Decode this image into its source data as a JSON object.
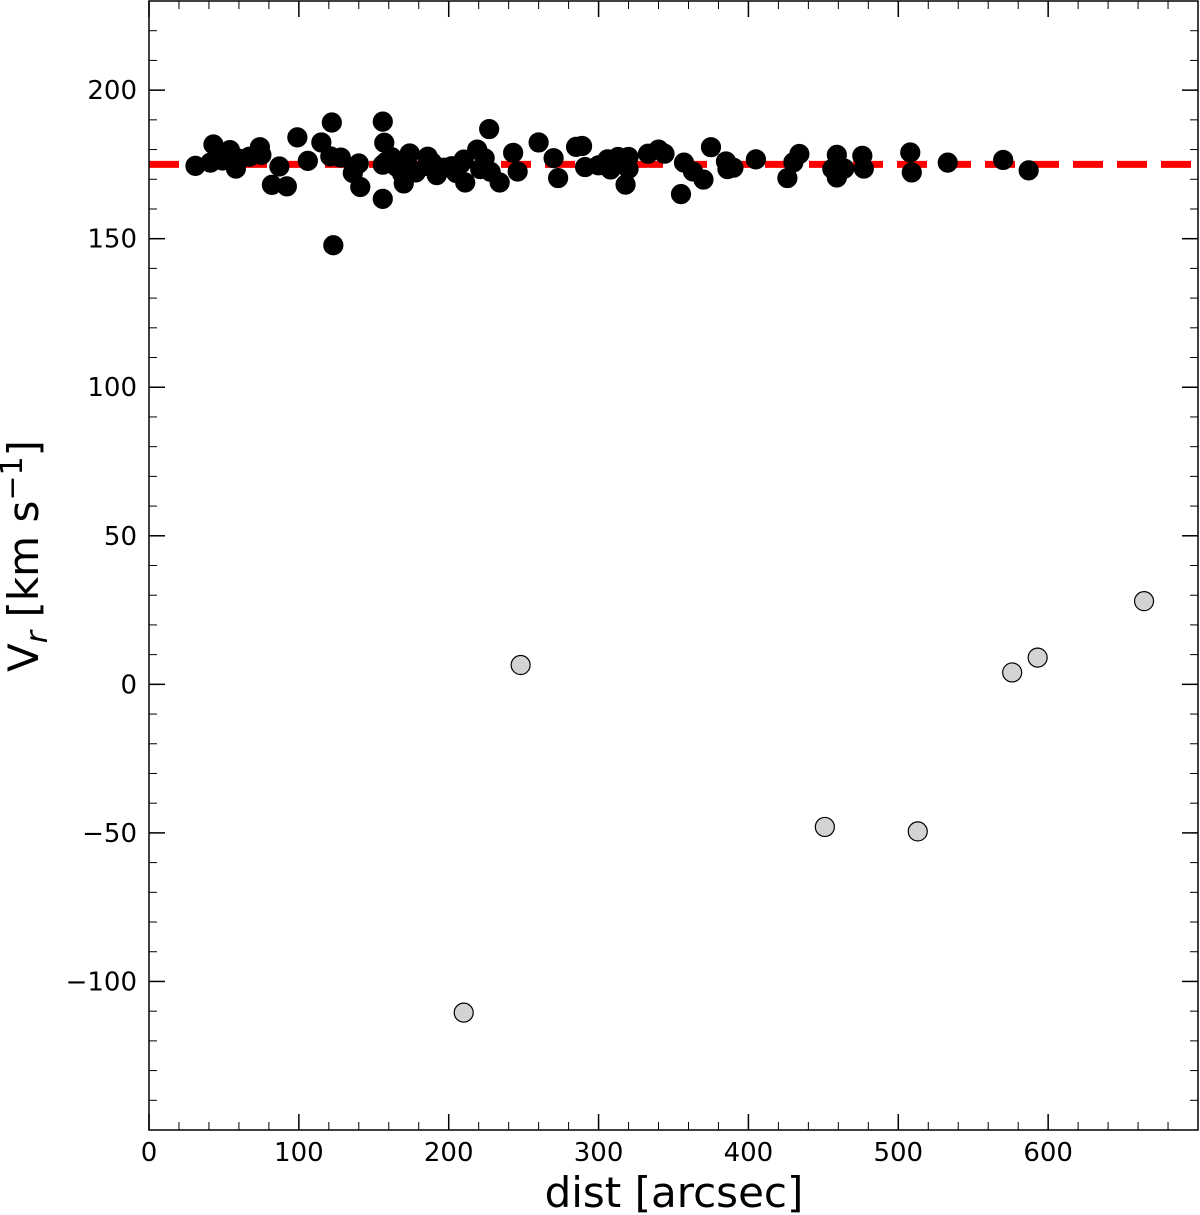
{
  "chart_data": {
    "type": "scatter",
    "title": "",
    "xlabel": "dist [arcsec]",
    "ylabel": {
      "base": "V",
      "sub": "r",
      "units_prefix": " [km s",
      "sup": "−1",
      "units_suffix": "]"
    },
    "xlim": [
      0,
      700
    ],
    "ylim": [
      -150,
      230
    ],
    "x_ticks": [
      0,
      100,
      200,
      300,
      400,
      500,
      600
    ],
    "x_tick_labels": [
      "0",
      "100",
      "200",
      "300",
      "400",
      "500",
      "600"
    ],
    "y_ticks": [
      -100,
      -50,
      0,
      50,
      100,
      150,
      200
    ],
    "y_tick_labels": [
      "−100",
      "−50",
      "0",
      "50",
      "100",
      "150",
      "200"
    ],
    "x_minor_step": 20,
    "y_minor_step": 10,
    "grid": false,
    "reference_line": {
      "y": 175,
      "color": "#ff0000",
      "style": "dashed"
    },
    "series": [
      {
        "marker_color": "#000000",
        "points": [
          [
            31,
            174.5
          ],
          [
            41,
            175.6
          ],
          [
            43,
            181.7
          ],
          [
            49,
            176.3
          ],
          [
            54,
            179.8
          ],
          [
            58,
            173.6
          ],
          [
            60,
            176.9
          ],
          [
            67,
            177.6
          ],
          [
            74,
            180.8
          ],
          [
            75,
            178.2
          ],
          [
            82,
            168.1
          ],
          [
            87,
            174.3
          ],
          [
            92,
            167.6
          ],
          [
            99,
            184.1
          ],
          [
            106,
            176.2
          ],
          [
            115,
            182.4
          ],
          [
            121,
            177.7
          ],
          [
            122,
            189.1
          ],
          [
            123,
            147.8
          ],
          [
            128,
            177.3
          ],
          [
            136,
            172.1
          ],
          [
            140,
            175.3
          ],
          [
            141,
            167.4
          ],
          [
            156,
            189.4
          ],
          [
            156,
            174.9
          ],
          [
            156,
            163.4
          ],
          [
            157,
            182.3
          ],
          [
            158,
            175.8
          ],
          [
            162,
            177.4
          ],
          [
            165,
            174.3
          ],
          [
            167,
            173.5
          ],
          [
            169,
            171.8
          ],
          [
            170,
            168.6
          ],
          [
            172,
            176.4
          ],
          [
            174,
            178.7
          ],
          [
            178,
            172.3
          ],
          [
            185,
            174.5
          ],
          [
            186,
            177.6
          ],
          [
            189,
            175.6
          ],
          [
            192,
            171.4
          ],
          [
            197,
            173.9
          ],
          [
            202,
            174.4
          ],
          [
            205,
            172.1
          ],
          [
            208,
            175.2
          ],
          [
            210,
            176.6
          ],
          [
            211,
            168.9
          ],
          [
            219,
            180.0
          ],
          [
            221,
            173.4
          ],
          [
            224,
            177.1
          ],
          [
            227,
            186.9
          ],
          [
            228,
            172.5
          ],
          [
            234,
            168.9
          ],
          [
            243,
            178.9
          ],
          [
            246,
            172.6
          ],
          [
            260,
            182.4
          ],
          [
            270,
            177.1
          ],
          [
            273,
            170.4
          ],
          [
            285,
            180.9
          ],
          [
            289,
            181.2
          ],
          [
            291,
            174.1
          ],
          [
            300,
            174.7
          ],
          [
            306,
            176.7
          ],
          [
            308,
            173.3
          ],
          [
            313,
            177.5
          ],
          [
            314,
            175.6
          ],
          [
            318,
            168.2
          ],
          [
            320,
            177.5
          ],
          [
            320,
            173.5
          ],
          [
            333,
            178.6
          ],
          [
            340,
            180.0
          ],
          [
            344,
            178.6
          ],
          [
            355,
            165.0
          ],
          [
            357,
            175.6
          ],
          [
            363,
            172.6
          ],
          [
            370,
            169.9
          ],
          [
            375,
            180.8
          ],
          [
            385,
            176.0
          ],
          [
            386,
            173.4
          ],
          [
            390,
            173.9
          ],
          [
            405,
            176.7
          ],
          [
            426,
            170.4
          ],
          [
            430,
            175.7
          ],
          [
            434,
            178.5
          ],
          [
            456,
            173.5
          ],
          [
            459,
            178.2
          ],
          [
            459,
            170.6
          ],
          [
            464,
            173.6
          ],
          [
            476,
            177.9
          ],
          [
            477,
            173.6
          ],
          [
            508,
            179.0
          ],
          [
            509,
            172.3
          ],
          [
            533,
            175.6
          ],
          [
            570,
            176.5
          ],
          [
            587,
            173.0
          ]
        ]
      },
      {
        "marker_color": "#d3d3d3",
        "points": [
          [
            210,
            -110.5
          ],
          [
            248,
            6.5
          ],
          [
            451,
            -48
          ],
          [
            513,
            -49.5
          ],
          [
            576,
            4
          ],
          [
            593,
            9
          ],
          [
            664,
            28
          ]
        ]
      }
    ]
  }
}
